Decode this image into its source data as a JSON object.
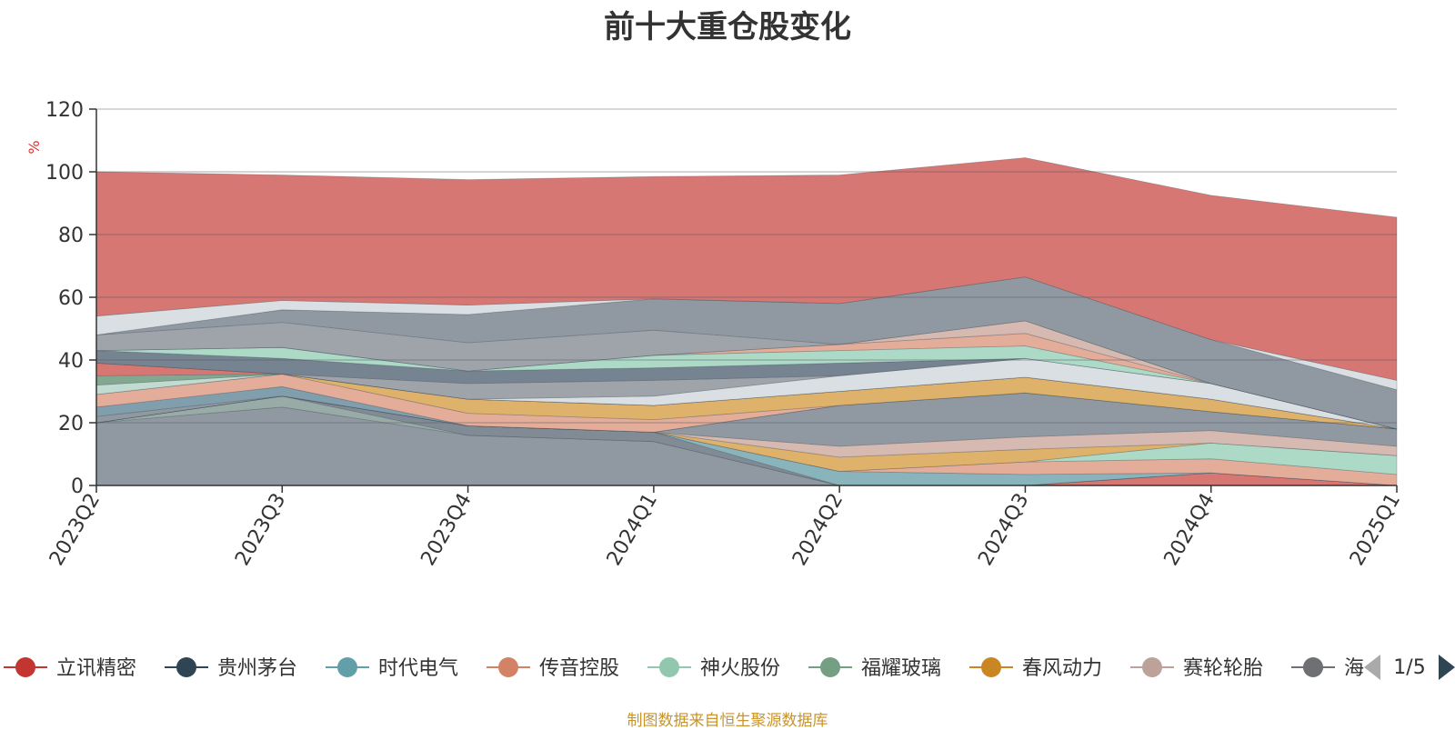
{
  "chart_data": {
    "type": "area",
    "title": "前十大重仓股变化",
    "ylabel": "%",
    "ylim": [
      0,
      120
    ],
    "yticks": [
      0,
      20,
      40,
      60,
      80,
      100,
      120
    ],
    "grid": true,
    "legend_position": "bottom",
    "x": [
      "2023Q2",
      "2023Q3",
      "2023Q4",
      "2024Q1",
      "2024Q2",
      "2024Q3",
      "2024Q4",
      "2025Q1"
    ],
    "series": [
      {
        "name": "立讯精密",
        "color": "#d4706d",
        "values": [
          0,
          0,
          0,
          0,
          0,
          0,
          4,
          0
        ]
      },
      {
        "name": "",
        "color": "#8a939c",
        "values": [
          20,
          25,
          16,
          14,
          0,
          0,
          0,
          0
        ]
      },
      {
        "name": "",
        "color": "#94a6a2",
        "values": [
          0,
          3.5,
          0,
          0,
          0,
          0,
          0,
          0
        ]
      },
      {
        "name": "",
        "color": "#7a858f",
        "values": [
          0,
          0,
          3,
          3,
          0,
          0,
          0,
          0
        ]
      },
      {
        "name": "时代电气",
        "color": "#83b0b8",
        "values": [
          0,
          0,
          0,
          0,
          4.5,
          3.5,
          0,
          0
        ]
      },
      {
        "name": "传音控股",
        "color": "#e3a994",
        "values": [
          0,
          0,
          0,
          0,
          0,
          4,
          4.5,
          3.5
        ]
      },
      {
        "name": "神火股份",
        "color": "#a8d8c4",
        "values": [
          0,
          0,
          0,
          0,
          0,
          0,
          5,
          6
        ]
      },
      {
        "name": "春风动力",
        "color": "#dcae63",
        "values": [
          0,
          0,
          0,
          0,
          4.5,
          4,
          0,
          0
        ]
      },
      {
        "name": "赛轮轮胎",
        "color": "#d4b5ac",
        "values": [
          0,
          0,
          0,
          0,
          3.5,
          4,
          4,
          3
        ]
      },
      {
        "name": "",
        "color": "#8a939c",
        "values": [
          0,
          0,
          0,
          0,
          13,
          14,
          6,
          5.5
        ]
      },
      {
        "name": "",
        "color": "#8a939c",
        "values": [
          2,
          0,
          0,
          0,
          0,
          0,
          0,
          0
        ]
      },
      {
        "name": "",
        "color": "#7a99a8",
        "values": [
          3,
          3,
          0,
          0,
          0,
          0,
          0,
          0
        ]
      },
      {
        "name": "",
        "color": "#e3a994",
        "values": [
          4,
          4,
          4,
          4,
          0,
          0,
          0,
          0
        ]
      },
      {
        "name": "",
        "color": "#dcae63",
        "values": [
          0,
          0,
          4.5,
          4.5,
          4.5,
          5,
          4,
          0
        ]
      },
      {
        "name": "",
        "color": "#bfd9cf",
        "values": [
          3,
          0,
          0,
          0,
          0,
          0,
          0,
          0
        ]
      },
      {
        "name": "",
        "color": "#7ca38a",
        "values": [
          3,
          0,
          0,
          0,
          0,
          0,
          0,
          0
        ]
      },
      {
        "name": "",
        "color": "#d4706d",
        "values": [
          4,
          0,
          0,
          0,
          0,
          0,
          0,
          0
        ]
      },
      {
        "name": "",
        "color": "#d8dde3",
        "values": [
          0,
          0,
          0,
          3,
          5,
          6,
          5,
          0
        ]
      },
      {
        "name": "",
        "color": "#9a9fa6",
        "values": [
          0,
          0,
          5,
          5,
          0,
          0,
          0,
          0
        ]
      },
      {
        "name": "",
        "color": "#6f7c8a",
        "values": [
          4,
          5,
          4,
          4,
          4,
          0,
          0,
          0
        ]
      },
      {
        "name": "",
        "color": "#a8d8c4",
        "values": [
          0,
          3.5,
          0,
          4,
          4,
          4,
          0,
          0
        ]
      },
      {
        "name": "",
        "color": "#e3a994",
        "values": [
          0,
          0,
          0,
          0,
          2,
          4,
          0,
          0
        ]
      },
      {
        "name": "",
        "color": "#d4b5ac",
        "values": [
          0,
          0,
          0,
          0,
          0,
          4,
          0,
          0
        ]
      },
      {
        "name": "",
        "color": "#9a9fa6",
        "values": [
          5,
          8,
          9,
          8,
          0,
          0,
          0,
          0
        ]
      },
      {
        "name": "",
        "color": "#8a939c",
        "values": [
          0,
          4,
          9,
          10,
          13,
          14,
          14,
          12.5
        ]
      },
      {
        "name": "",
        "color": "#d8dde3",
        "values": [
          6,
          3,
          3,
          0,
          0,
          0,
          0,
          3
        ]
      },
      {
        "name": "",
        "color": "#d4706d",
        "values": [
          46,
          40,
          40,
          39,
          41,
          38,
          46,
          52
        ]
      }
    ]
  },
  "legend": {
    "items": [
      {
        "label": "立讯精密",
        "color": "#c23531"
      },
      {
        "label": "贵州茅台",
        "color": "#2f4554"
      },
      {
        "label": "时代电气",
        "color": "#61a0a8"
      },
      {
        "label": "传音控股",
        "color": "#d48265"
      },
      {
        "label": "神火股份",
        "color": "#91c7ae"
      },
      {
        "label": "福耀玻璃",
        "color": "#749f83"
      },
      {
        "label": "春风动力",
        "color": "#ca8622"
      },
      {
        "label": "赛轮轮胎",
        "color": "#bda29a"
      },
      {
        "label": "海",
        "color": "#6e7074"
      }
    ],
    "page": "1/5"
  },
  "source_note": "制图数据来自恒生聚源数据库"
}
